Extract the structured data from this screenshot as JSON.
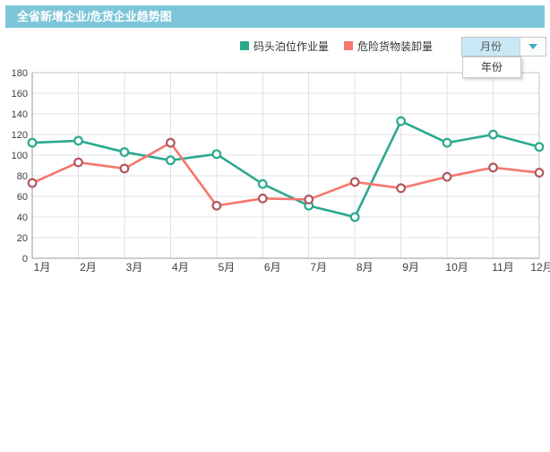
{
  "header": {
    "title": "全省新增企业/危货企业趋势图",
    "background": "#7dc6da",
    "text_color": "#ffffff"
  },
  "legend": {
    "items": [
      {
        "label": "码头泊位作业量",
        "color": "#2ba98e"
      },
      {
        "label": "危险货物装卸量",
        "color": "#f7766d"
      }
    ]
  },
  "period_selector": {
    "selected": "月份",
    "options": [
      "月份",
      "年份"
    ],
    "open_option": "年份",
    "selected_bg": "#c9e9f6",
    "arrow_color": "#47a9c6"
  },
  "chart_data": {
    "type": "line",
    "title": "",
    "xlabel": "",
    "ylabel": "",
    "categories": [
      "1月",
      "2月",
      "3月",
      "4月",
      "5月",
      "6月",
      "7月",
      "8月",
      "9月",
      "10月",
      "11月",
      "12月"
    ],
    "series": [
      {
        "name": "码头泊位作业量",
        "color": "#2ba98e",
        "marker_stroke": "#2ba98e",
        "values": [
          112,
          114,
          103,
          95,
          101,
          72,
          51,
          40,
          133,
          112,
          120,
          108
        ]
      },
      {
        "name": "危险货物装卸量",
        "color": "#f7766d",
        "marker_stroke": "#b0585f",
        "values": [
          73,
          93,
          87,
          112,
          51,
          58,
          57,
          74,
          68,
          79,
          88,
          83
        ]
      }
    ],
    "ylim": [
      0,
      180
    ],
    "ytick_interval": 20,
    "grid": true,
    "legend_position": "top",
    "colors": {
      "gridline": "#e0e0e0",
      "plot_border": "#c6c6c6",
      "axis_line": "#9b9b9b",
      "tick_text": "#3d3d3d"
    }
  }
}
